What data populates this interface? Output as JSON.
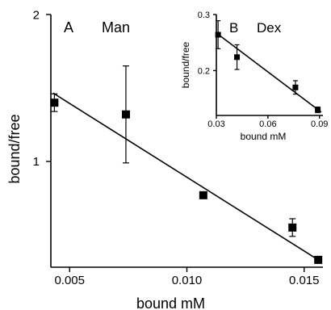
{
  "chart_data": [
    {
      "type": "scatter",
      "panel_label": "A",
      "title": "Man",
      "xlabel": "bound mM",
      "ylabel": "bound/free",
      "xlim": [
        0.0042,
        0.0158
      ],
      "ylim": [
        0.28,
        2.0
      ],
      "xticks": [
        0.005,
        0.01,
        0.015
      ],
      "xtick_labels": [
        "0.005",
        "0.010",
        "0.015"
      ],
      "yticks": [
        1,
        2
      ],
      "ytick_labels": [
        "1",
        "2"
      ],
      "points": [
        {
          "x": 0.00435,
          "y": 1.4,
          "err": 0.06
        },
        {
          "x": 0.0074,
          "y": 1.32,
          "err": 0.33
        },
        {
          "x": 0.0107,
          "y": 0.77
        },
        {
          "x": 0.0145,
          "y": 0.55,
          "err": 0.06
        },
        {
          "x": 0.0156,
          "y": 0.33
        }
      ],
      "fit_line": [
        [
          0.0043,
          1.465
        ],
        [
          0.0156,
          0.33
        ]
      ]
    },
    {
      "type": "scatter",
      "panel_label": "B",
      "title": "Dex",
      "xlabel": "bound mM",
      "ylabel": "bound/free",
      "xlim": [
        0.03,
        0.092
      ],
      "ylim": [
        0.12,
        0.3
      ],
      "xticks": [
        0.03,
        0.06,
        0.09
      ],
      "xtick_labels": [
        "0.03",
        "0.06",
        "0.09"
      ],
      "yticks": [
        0.2,
        0.3
      ],
      "ytick_labels": [
        "0.2",
        "0.3"
      ],
      "points": [
        {
          "x": 0.031,
          "y": 0.264,
          "err": 0.025
        },
        {
          "x": 0.042,
          "y": 0.224,
          "err": 0.022
        },
        {
          "x": 0.076,
          "y": 0.17,
          "err": 0.012
        },
        {
          "x": 0.089,
          "y": 0.13,
          "err": 0.005
        }
      ],
      "fit_line": [
        [
          0.03,
          0.267
        ],
        [
          0.091,
          0.126
        ]
      ]
    }
  ]
}
